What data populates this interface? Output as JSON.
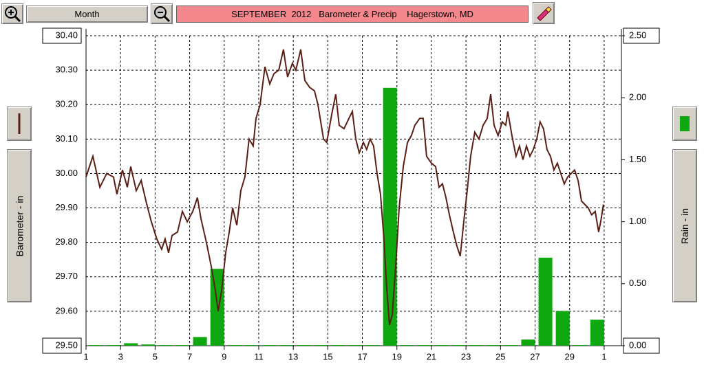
{
  "toolbar": {
    "period": "Month"
  },
  "chart_data": {
    "type": "combo",
    "title": "SEPTEMBER  2012   Barometer & Precip    Hagerstown, MD",
    "ylabel": "Barometer - in",
    "y2label": "Rain - in",
    "xlim": [
      1,
      32
    ],
    "xticks": [
      1,
      3,
      5,
      7,
      9,
      11,
      13,
      15,
      17,
      19,
      21,
      23,
      25,
      27,
      29,
      {
        "value": 31,
        "label": "1"
      }
    ],
    "ylim": [
      29.5,
      30.4
    ],
    "yticks": [
      {
        "value": 30.4,
        "label": "30.40"
      },
      {
        "value": 30.3,
        "label": "30.30"
      },
      {
        "value": 30.2,
        "label": "30.20"
      },
      {
        "value": 30.1,
        "label": "30.10"
      },
      {
        "value": 30.0,
        "label": "30.00"
      },
      {
        "value": 29.9,
        "label": "29.90"
      },
      {
        "value": 29.8,
        "label": "29.80"
      },
      {
        "value": 29.7,
        "label": "29.70"
      },
      {
        "value": 29.6,
        "label": "29.60"
      },
      {
        "value": 29.5,
        "label": "29.50"
      }
    ],
    "y2lim": [
      0,
      2.5
    ],
    "y2ticks": [
      {
        "value": 2.5,
        "label": "2.50"
      },
      {
        "value": 2.0,
        "label": "2.00"
      },
      {
        "value": 1.5,
        "label": "1.50"
      },
      {
        "value": 1.0,
        "label": "1.00"
      },
      {
        "value": 0.5,
        "label": "0.50"
      },
      {
        "value": 0,
        "label": "0.00"
      }
    ],
    "grid": true,
    "series": [
      {
        "type": "line",
        "color": "#5a1e14",
        "x": [
          1.0,
          1.4,
          1.8,
          2.2,
          2.59,
          2.79,
          3.11,
          3.39,
          3.59,
          3.91,
          4.19,
          4.47,
          4.78,
          5.1,
          5.38,
          5.58,
          5.78,
          5.98,
          6.3,
          6.58,
          6.86,
          7.18,
          7.45,
          7.65,
          7.97,
          8.25,
          8.49,
          8.65,
          8.85,
          9.09,
          9.29,
          9.49,
          9.73,
          9.96,
          10.2,
          10.44,
          10.68,
          10.84,
          11.08,
          11.36,
          11.64,
          11.88,
          12.16,
          12.43,
          12.67,
          12.95,
          13.15,
          13.43,
          13.67,
          13.95,
          14.23,
          14.43,
          14.75,
          14.94,
          15.22,
          15.46,
          15.66,
          15.94,
          16.22,
          16.42,
          16.62,
          16.82,
          17.06,
          17.25,
          17.45,
          17.65,
          17.85,
          18.05,
          18.25,
          18.41,
          18.57,
          18.73,
          18.93,
          19.13,
          19.37,
          19.61,
          19.84,
          20.04,
          20.32,
          20.52,
          20.72,
          21.0,
          21.24,
          21.44,
          21.64,
          21.84,
          22.04,
          22.27,
          22.47,
          22.67,
          22.87,
          23.07,
          23.27,
          23.51,
          23.75,
          23.99,
          24.23,
          24.43,
          24.63,
          24.86,
          25.1,
          25.3,
          25.42,
          25.66,
          25.9,
          26.1,
          26.3,
          26.5,
          26.7,
          26.9,
          27.1,
          27.29,
          27.49,
          27.69,
          27.89,
          28.09,
          28.29,
          28.49,
          28.69,
          28.89,
          29.09,
          29.29,
          29.49,
          29.69,
          29.88,
          30.08,
          30.28,
          30.48,
          30.68,
          30.8,
          30.96
        ],
        "values": [
          29.99,
          30.05,
          29.96,
          30.0,
          29.99,
          29.94,
          30.01,
          29.96,
          30.02,
          29.95,
          29.98,
          29.92,
          29.86,
          29.81,
          29.78,
          29.81,
          29.77,
          29.82,
          29.83,
          29.89,
          29.86,
          29.89,
          29.93,
          29.87,
          29.8,
          29.73,
          29.66,
          29.6,
          29.66,
          29.77,
          29.83,
          29.9,
          29.85,
          29.95,
          29.99,
          30.1,
          30.08,
          30.16,
          30.2,
          30.31,
          30.26,
          30.29,
          30.3,
          30.36,
          30.28,
          30.32,
          30.3,
          30.36,
          30.27,
          30.25,
          30.24,
          30.2,
          30.1,
          30.09,
          30.17,
          30.23,
          30.14,
          30.13,
          30.16,
          30.18,
          30.1,
          30.06,
          30.09,
          30.07,
          30.1,
          30.08,
          30.0,
          29.94,
          29.81,
          29.67,
          29.56,
          29.59,
          29.73,
          29.9,
          30.02,
          30.09,
          30.11,
          30.14,
          30.16,
          30.16,
          30.05,
          30.03,
          30.02,
          29.96,
          29.97,
          29.93,
          29.88,
          29.83,
          29.79,
          29.76,
          29.86,
          29.95,
          30.05,
          30.12,
          30.1,
          30.14,
          30.16,
          30.23,
          30.14,
          30.11,
          30.15,
          30.14,
          30.18,
          30.11,
          30.05,
          30.08,
          30.04,
          30.08,
          30.05,
          30.07,
          30.1,
          30.15,
          30.13,
          30.07,
          30.05,
          30.01,
          30.03,
          30.0,
          29.97,
          29.99,
          30.0,
          30.01,
          29.98,
          29.92,
          29.91,
          29.9,
          29.88,
          29.89,
          29.83,
          29.86,
          29.91
        ]
      },
      {
        "type": "bar",
        "axis": "y2",
        "color": "#10a810",
        "x": [
          1,
          2,
          3,
          4,
          5,
          6,
          7,
          8,
          9,
          10,
          11,
          12,
          13,
          14,
          15,
          16,
          17,
          18,
          19,
          20,
          21,
          22,
          23,
          24,
          25,
          26,
          27,
          28,
          29,
          30
        ],
        "values": [
          0,
          0,
          0.02,
          0.01,
          0,
          0,
          0.07,
          0.62,
          0,
          0,
          0,
          0,
          0,
          0,
          0,
          0,
          0,
          2.08,
          0,
          0,
          0,
          0,
          0,
          0,
          0,
          0.05,
          0.71,
          0.28,
          0,
          0.21
        ]
      }
    ]
  }
}
